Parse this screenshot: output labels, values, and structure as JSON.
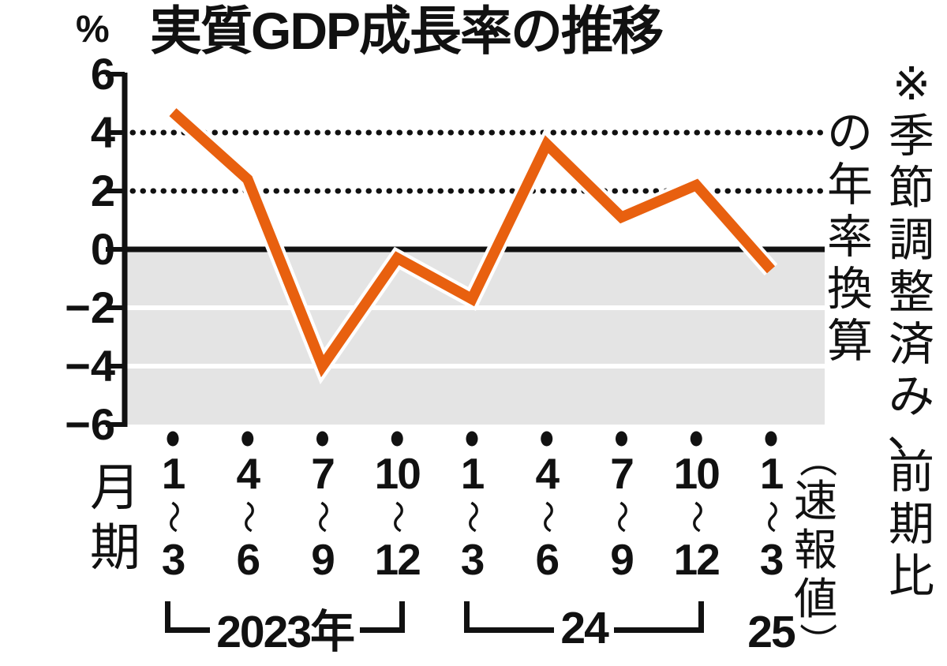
{
  "title": "実質GDP成長率の推移",
  "y_axis": {
    "unit": "%",
    "ticks": [
      6,
      4,
      2,
      0,
      -2,
      -4,
      -6
    ]
  },
  "x_axis": {
    "side_label": "月期",
    "quarter_labels": [
      "1〜3",
      "4〜6",
      "7〜9",
      "10〜12",
      "1〜3",
      "4〜6",
      "7〜9",
      "10〜12",
      "1〜3"
    ],
    "year_groups": [
      {
        "label": "2023年",
        "from": 0,
        "to": 3
      },
      {
        "label": "24",
        "from": 4,
        "to": 7
      },
      {
        "label": "25",
        "from": 8,
        "to": 8
      }
    ],
    "preliminary_note": "（速報値）"
  },
  "note": {
    "line1": "※季節調整済み、前期比",
    "line2": "の年率換算"
  },
  "colors": {
    "line": "#E8600F",
    "line_halo": "#FFFFFF",
    "negative_shade": "#E4E4E4",
    "ink": "#111111"
  },
  "chart_data": {
    "type": "line",
    "title": "実質GDP成長率の推移",
    "ylabel": "%",
    "ylim": [
      -6,
      6
    ],
    "yticks": [
      6,
      4,
      2,
      0,
      -2,
      -4,
      -6
    ],
    "dotted_gridlines_at": [
      4,
      2
    ],
    "white_gridlines_at": [
      -2,
      -4
    ],
    "shaded_region": "0以下（マイナス圏）",
    "categories": [
      "2023年1〜3月期",
      "2023年4〜6月期",
      "2023年7〜9月期",
      "2023年10〜12月期",
      "2024年1〜3月期",
      "2024年4〜6月期",
      "2024年7〜9月期",
      "2024年10〜12月期",
      "2025年1〜3月期（速報値）"
    ],
    "values": [
      4.7,
      2.4,
      -4.0,
      -0.3,
      -1.7,
      3.6,
      1.1,
      2.2,
      -0.7
    ],
    "grid": "partial",
    "legend": "none"
  }
}
